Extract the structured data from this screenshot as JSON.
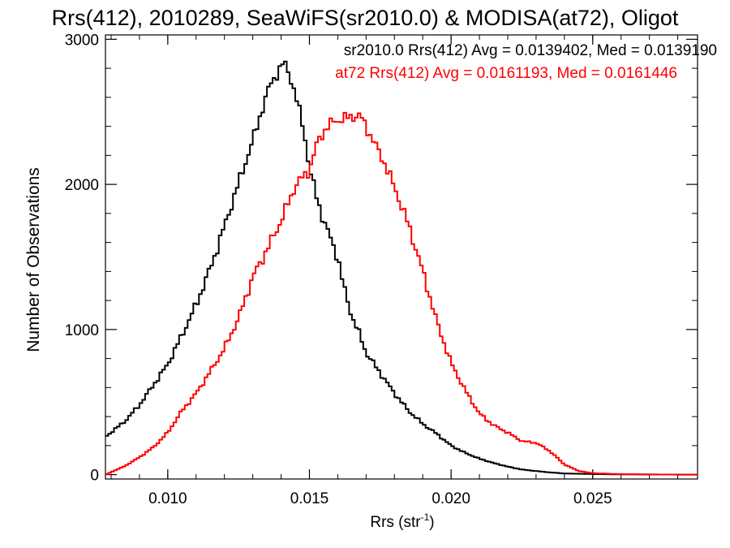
{
  "chart_data": {
    "type": "line",
    "title": "Rrs(412), 2010289, SeaWiFS(sr2010.0) & MODISA(at72), Oligot",
    "xlabel": "Rrs (str",
    "xlabel_sup": "-1",
    "xlabel_close": ")",
    "ylabel": "Number of Observations",
    "xlim": [
      0.0078,
      0.0287
    ],
    "ylim": [
      -30,
      3030
    ],
    "x_ticks": [
      {
        "value": 0.01,
        "label": "0.010"
      },
      {
        "value": 0.015,
        "label": "0.015"
      },
      {
        "value": 0.02,
        "label": "0.020"
      },
      {
        "value": 0.025,
        "label": "0.025"
      }
    ],
    "y_ticks": [
      {
        "value": 0,
        "label": "0"
      },
      {
        "value": 1000,
        "label": "1000"
      },
      {
        "value": 2000,
        "label": "2000"
      },
      {
        "value": 3000,
        "label": "3000"
      }
    ],
    "grid": false,
    "annotations": [
      {
        "text": "sr2010.0 Rrs(412) Avg = 0.0139402, Med = 0.0139190",
        "color": "#000000"
      },
      {
        "text": "at72 Rrs(412) Avg = 0.0161193, Med = 0.0161446",
        "color": "#ff0000"
      }
    ],
    "series": [
      {
        "color": "#000000",
        "x": [
          0.0078,
          0.0085,
          0.009,
          0.0095,
          0.01,
          0.0105,
          0.011,
          0.0115,
          0.012,
          0.0125,
          0.013,
          0.0133,
          0.0136,
          0.0139,
          0.0141,
          0.0143,
          0.0145,
          0.0148,
          0.015,
          0.0152,
          0.0155,
          0.0158,
          0.016,
          0.0162,
          0.0165,
          0.0168,
          0.017,
          0.0175,
          0.018,
          0.0185,
          0.019,
          0.0195,
          0.02,
          0.0205,
          0.021,
          0.0215,
          0.022,
          0.0225,
          0.023,
          0.0235,
          0.024,
          0.025,
          0.026,
          0.0287
        ],
        "y": [
          260,
          370,
          480,
          620,
          760,
          960,
          1170,
          1420,
          1710,
          2010,
          2300,
          2500,
          2680,
          2780,
          2840,
          2760,
          2620,
          2380,
          2110,
          1950,
          1750,
          1600,
          1500,
          1300,
          1090,
          950,
          840,
          700,
          560,
          440,
          350,
          280,
          200,
          150,
          110,
          80,
          55,
          35,
          25,
          15,
          8,
          4,
          2,
          0
        ]
      },
      {
        "color": "#ff0000",
        "x": [
          0.0078,
          0.0085,
          0.009,
          0.0095,
          0.01,
          0.0105,
          0.011,
          0.0115,
          0.012,
          0.0125,
          0.013,
          0.0135,
          0.014,
          0.0145,
          0.015,
          0.0153,
          0.0156,
          0.0159,
          0.0162,
          0.0165,
          0.0168,
          0.017,
          0.0173,
          0.0176,
          0.018,
          0.0185,
          0.019,
          0.0195,
          0.02,
          0.0205,
          0.021,
          0.0215,
          0.022,
          0.0225,
          0.023,
          0.0235,
          0.024,
          0.0245,
          0.025,
          0.026,
          0.027,
          0.0287
        ],
        "y": [
          0,
          60,
          120,
          190,
          290,
          440,
          560,
          710,
          870,
          1080,
          1360,
          1550,
          1750,
          1990,
          2100,
          2300,
          2390,
          2440,
          2450,
          2470,
          2470,
          2400,
          2280,
          2170,
          1980,
          1720,
          1400,
          1050,
          770,
          580,
          420,
          340,
          290,
          230,
          220,
          160,
          70,
          25,
          10,
          3,
          1,
          0
        ]
      }
    ]
  }
}
